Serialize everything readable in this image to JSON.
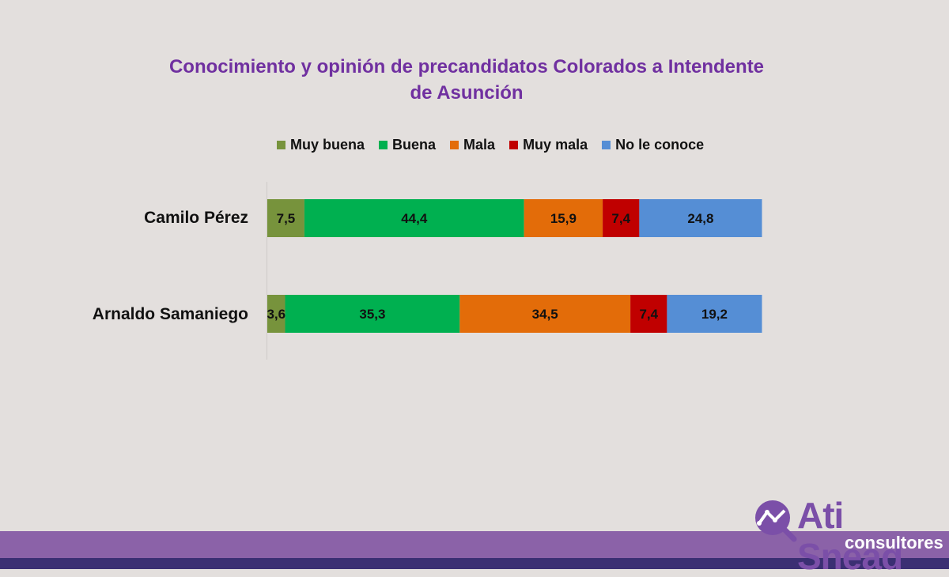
{
  "chart_data": {
    "type": "bar",
    "orientation": "horizontal",
    "stacked": true,
    "title": "Conocimiento y opinión de precandidatos Colorados a Intendente de Asunción",
    "title_lines": [
      "Conocimiento y opinión de precandidatos Colorados a Intendente",
      "de Asunción"
    ],
    "categories": [
      "Camilo Pérez",
      "Arnaldo Samaniego"
    ],
    "series": [
      {
        "name": "Muy buena",
        "color": "#77933c",
        "values": [
          7.5,
          3.6
        ],
        "labels": [
          "7,5",
          "3,6"
        ]
      },
      {
        "name": "Buena",
        "color": "#00b050",
        "values": [
          44.4,
          35.3
        ],
        "labels": [
          "44,4",
          "35,3"
        ]
      },
      {
        "name": "Mala",
        "color": "#e36c09",
        "values": [
          15.9,
          34.5
        ],
        "labels": [
          "15,9",
          "34,5"
        ]
      },
      {
        "name": "Muy mala",
        "color": "#c00000",
        "values": [
          7.4,
          7.4
        ],
        "labels": [
          "7,4",
          "7,4"
        ]
      },
      {
        "name": "No le conoce",
        "color": "#558ed5",
        "values": [
          24.8,
          19.2
        ],
        "labels": [
          "24,8",
          "19,2"
        ]
      }
    ],
    "xlim": [
      0,
      100
    ],
    "grid": false,
    "legend_position": "top"
  },
  "logo": {
    "name": "Ati Snead",
    "sub": "consultores"
  }
}
